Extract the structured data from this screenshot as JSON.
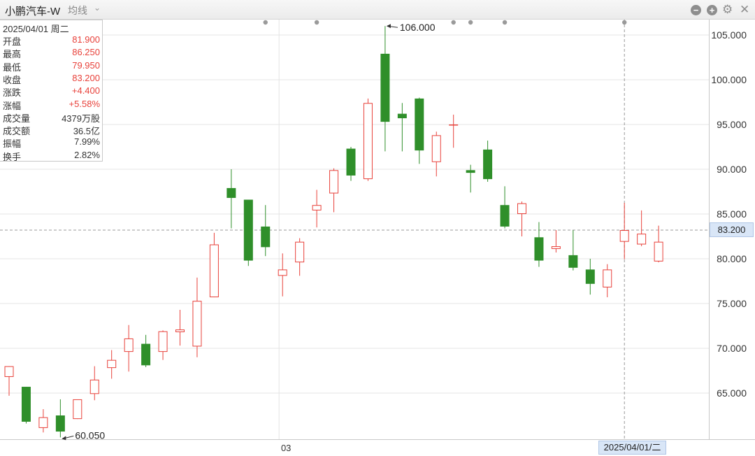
{
  "header": {
    "title": "小鹏汽车-W",
    "ma_label": "均线",
    "ma_caret": "⌄"
  },
  "info_panel": {
    "date": "2025/04/01 周二",
    "rows": [
      {
        "label": "开盘",
        "value": "81.900",
        "color": "#e8413a"
      },
      {
        "label": "最高",
        "value": "86.250",
        "color": "#e8413a"
      },
      {
        "label": "最低",
        "value": "79.950",
        "color": "#e8413a"
      },
      {
        "label": "收盘",
        "value": "83.200",
        "color": "#e8413a"
      },
      {
        "label": "涨跌",
        "value": "+4.400",
        "color": "#e8413a"
      },
      {
        "label": "涨幅",
        "value": "+5.58%",
        "color": "#e8413a"
      },
      {
        "label": "成交量",
        "value": "4379万股",
        "color": "#333333"
      },
      {
        "label": "成交额",
        "value": "36.5亿",
        "color": "#333333"
      },
      {
        "label": "振幅",
        "value": "7.99%",
        "color": "#333333"
      },
      {
        "label": "换手",
        "value": "2.82%",
        "color": "#333333"
      }
    ]
  },
  "crosshair": {
    "price_label": "83.200",
    "date_label": "2025/04/01/二"
  },
  "chart_data": {
    "type": "candlestick",
    "y_ticks": [
      "105.000",
      "100.000",
      "95.000",
      "90.000",
      "85.000",
      "80.000",
      "75.000",
      "70.000",
      "65.000"
    ],
    "ylim": [
      60.0,
      107.0
    ],
    "x_tick_labels": [
      {
        "label": "03",
        "index": 16
      }
    ],
    "annotations": [
      {
        "text": "106.000",
        "index": 22,
        "value": 106.0,
        "kind": "high"
      },
      {
        "text": "60.050",
        "index": 3,
        "value": 60.05,
        "kind": "low"
      }
    ],
    "crosshair_index": 36,
    "crosshair_value": 83.2,
    "event_marker_indices": [
      15,
      18,
      26,
      27,
      29,
      36
    ],
    "colors": {
      "up": "#e8413a",
      "down": "#2f8f2a",
      "grid": "#e4e4e4"
    },
    "candles": [
      {
        "o": 66.8,
        "h": 68.0,
        "l": 64.7,
        "c": 68.0
      },
      {
        "o": 65.7,
        "h": 65.7,
        "l": 61.6,
        "c": 61.8
      },
      {
        "o": 61.1,
        "h": 63.2,
        "l": 60.6,
        "c": 62.3
      },
      {
        "o": 62.5,
        "h": 64.3,
        "l": 60.05,
        "c": 60.7
      },
      {
        "o": 62.1,
        "h": 64.1,
        "l": 62.1,
        "c": 64.3
      },
      {
        "o": 64.9,
        "h": 68.0,
        "l": 64.2,
        "c": 66.5
      },
      {
        "o": 67.8,
        "h": 69.8,
        "l": 66.6,
        "c": 68.7
      },
      {
        "o": 69.6,
        "h": 72.6,
        "l": 67.4,
        "c": 71.1
      },
      {
        "o": 70.5,
        "h": 71.5,
        "l": 67.9,
        "c": 68.1
      },
      {
        "o": 69.6,
        "h": 72.0,
        "l": 68.7,
        "c": 71.9
      },
      {
        "o": 71.8,
        "h": 74.3,
        "l": 70.3,
        "c": 72.1
      },
      {
        "o": 70.2,
        "h": 77.9,
        "l": 69.0,
        "c": 75.3
      },
      {
        "o": 75.7,
        "h": 82.9,
        "l": 75.7,
        "c": 81.6
      },
      {
        "o": 87.9,
        "h": 90.0,
        "l": 83.4,
        "c": 86.8
      },
      {
        "o": 86.6,
        "h": 86.6,
        "l": 79.2,
        "c": 79.8
      },
      {
        "o": 83.6,
        "h": 86.0,
        "l": 80.3,
        "c": 81.3
      },
      {
        "o": 78.1,
        "h": 80.6,
        "l": 75.8,
        "c": 78.8
      },
      {
        "o": 79.6,
        "h": 82.3,
        "l": 78.1,
        "c": 81.9
      },
      {
        "o": 85.4,
        "h": 87.7,
        "l": 83.5,
        "c": 86.0
      },
      {
        "o": 87.3,
        "h": 90.1,
        "l": 85.2,
        "c": 89.9
      },
      {
        "o": 92.3,
        "h": 92.5,
        "l": 88.7,
        "c": 89.3
      },
      {
        "o": 88.9,
        "h": 97.9,
        "l": 88.7,
        "c": 97.4
      },
      {
        "o": 102.9,
        "h": 106.0,
        "l": 92.0,
        "c": 95.3
      },
      {
        "o": 96.2,
        "h": 97.4,
        "l": 92.0,
        "c": 95.7
      },
      {
        "o": 97.9,
        "h": 98.0,
        "l": 90.6,
        "c": 92.1
      },
      {
        "o": 90.8,
        "h": 94.2,
        "l": 89.2,
        "c": 93.8
      },
      {
        "o": 95.0,
        "h": 96.1,
        "l": 92.4,
        "c": 95.0
      },
      {
        "o": 89.9,
        "h": 90.5,
        "l": 87.4,
        "c": 89.6
      },
      {
        "o": 92.2,
        "h": 93.2,
        "l": 88.6,
        "c": 88.9
      },
      {
        "o": 86.0,
        "h": 88.1,
        "l": 83.4,
        "c": 83.6
      },
      {
        "o": 85.0,
        "h": 86.4,
        "l": 82.5,
        "c": 86.2
      },
      {
        "o": 82.4,
        "h": 84.1,
        "l": 79.1,
        "c": 79.8
      },
      {
        "o": 81.1,
        "h": 83.2,
        "l": 80.7,
        "c": 81.4
      },
      {
        "o": 80.4,
        "h": 83.2,
        "l": 78.7,
        "c": 79.0
      },
      {
        "o": 78.8,
        "h": 80.0,
        "l": 76.0,
        "c": 77.2
      },
      {
        "o": 76.8,
        "h": 79.4,
        "l": 75.7,
        "c": 78.8
      },
      {
        "o": 81.9,
        "h": 86.25,
        "l": 79.95,
        "c": 83.2
      },
      {
        "o": 81.6,
        "h": 85.4,
        "l": 81.4,
        "c": 82.8
      },
      {
        "o": 79.7,
        "h": 83.7,
        "l": 79.6,
        "c": 81.9
      }
    ]
  }
}
